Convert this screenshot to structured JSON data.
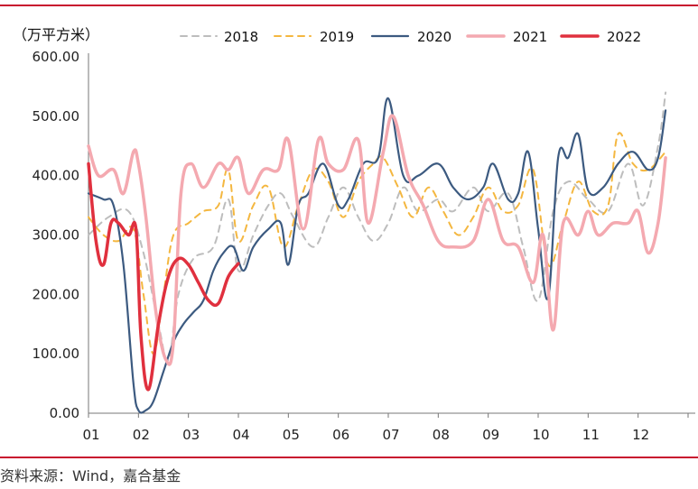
{
  "chart_data": {
    "type": "line",
    "unit_label": "（万平方米）",
    "ylim": [
      0,
      600
    ],
    "y_ticks": [
      "0.00",
      "100.00",
      "200.00",
      "300.00",
      "400.00",
      "500.00",
      "600.00"
    ],
    "x_ticks": [
      "01",
      "02",
      "03",
      "04",
      "05",
      "06",
      "07",
      "08",
      "09",
      "10",
      "11",
      "12"
    ],
    "x_range": [
      1,
      13
    ],
    "legend_position": "top",
    "series": [
      {
        "name": "2018",
        "color": "#bdbdbd",
        "style": "dashed",
        "x": [
          1.0,
          1.4,
          1.8,
          2.1,
          2.4,
          2.6,
          2.8,
          3.1,
          3.5,
          3.8,
          4.0,
          4.3,
          4.6,
          4.85,
          5.1,
          5.5,
          5.8,
          6.1,
          6.4,
          6.7,
          7.0,
          7.3,
          7.6,
          8.0,
          8.3,
          8.7,
          9.0,
          9.4,
          9.7,
          10.0,
          10.3,
          10.6,
          11.0,
          11.4,
          11.8,
          12.1,
          12.4,
          12.55
        ],
        "values": [
          300,
          330,
          340,
          270,
          150,
          90,
          200,
          260,
          280,
          360,
          240,
          300,
          350,
          370,
          330,
          280,
          330,
          380,
          330,
          290,
          320,
          380,
          340,
          360,
          340,
          380,
          340,
          370,
          280,
          190,
          340,
          390,
          360,
          340,
          420,
          350,
          450,
          540
        ]
      },
      {
        "name": "2019",
        "color": "#f4b740",
        "style": "dashed",
        "x": [
          1.0,
          1.3,
          1.6,
          1.9,
          2.1,
          2.3,
          2.5,
          2.7,
          3.0,
          3.3,
          3.6,
          3.8,
          4.0,
          4.3,
          4.6,
          4.9,
          5.2,
          5.5,
          5.8,
          6.1,
          6.4,
          6.7,
          6.9,
          7.2,
          7.5,
          7.8,
          8.1,
          8.4,
          8.7,
          9.0,
          9.3,
          9.6,
          9.9,
          10.2,
          10.5,
          10.8,
          11.1,
          11.4,
          11.6,
          11.9,
          12.2,
          12.55
        ],
        "values": [
          330,
          300,
          290,
          310,
          200,
          100,
          200,
          300,
          320,
          340,
          350,
          410,
          290,
          350,
          380,
          280,
          350,
          410,
          390,
          330,
          390,
          420,
          430,
          380,
          330,
          380,
          340,
          300,
          330,
          380,
          340,
          350,
          410,
          250,
          320,
          390,
          340,
          350,
          470,
          420,
          410,
          440
        ]
      },
      {
        "name": "2020",
        "color": "#3c5a80",
        "style": "solid",
        "x": [
          1.0,
          1.3,
          1.5,
          1.7,
          1.9,
          2.0,
          2.15,
          2.3,
          2.5,
          2.7,
          2.9,
          3.1,
          3.3,
          3.5,
          3.7,
          3.9,
          4.1,
          4.3,
          4.6,
          4.85,
          5.0,
          5.2,
          5.4,
          5.7,
          6.0,
          6.2,
          6.5,
          6.8,
          7.0,
          7.3,
          7.6,
          8.0,
          8.3,
          8.6,
          8.9,
          9.1,
          9.4,
          9.6,
          9.8,
          10.0,
          10.2,
          10.4,
          10.6,
          10.8,
          11.0,
          11.3,
          11.6,
          11.9,
          12.2,
          12.4,
          12.55
        ],
        "values": [
          370,
          360,
          350,
          250,
          50,
          5,
          5,
          20,
          70,
          120,
          150,
          170,
          190,
          240,
          270,
          280,
          240,
          280,
          310,
          320,
          250,
          350,
          370,
          420,
          350,
          360,
          420,
          430,
          530,
          400,
          400,
          420,
          380,
          360,
          380,
          420,
          360,
          370,
          440,
          310,
          195,
          430,
          430,
          470,
          375,
          380,
          420,
          440,
          410,
          430,
          510
        ]
      },
      {
        "name": "2021",
        "color": "#f4a9b0",
        "style": "solid",
        "x": [
          1.0,
          1.2,
          1.5,
          1.7,
          1.9,
          2.0,
          2.15,
          2.35,
          2.55,
          2.7,
          2.85,
          3.05,
          3.3,
          3.6,
          3.8,
          4.0,
          4.2,
          4.5,
          4.8,
          5.0,
          5.3,
          5.6,
          5.8,
          6.1,
          6.4,
          6.6,
          6.9,
          7.1,
          7.4,
          7.7,
          8.0,
          8.3,
          8.7,
          9.0,
          9.3,
          9.6,
          9.9,
          10.1,
          10.3,
          10.5,
          10.8,
          11.0,
          11.2,
          11.5,
          11.8,
          12.0,
          12.2,
          12.4,
          12.55
        ],
        "values": [
          450,
          400,
          410,
          370,
          440,
          420,
          330,
          170,
          90,
          120,
          370,
          420,
          380,
          420,
          410,
          430,
          370,
          410,
          410,
          460,
          310,
          460,
          420,
          410,
          460,
          320,
          440,
          500,
          400,
          350,
          290,
          280,
          290,
          360,
          290,
          280,
          220,
          300,
          140,
          320,
          300,
          340,
          300,
          320,
          320,
          340,
          270,
          320,
          430
        ]
      },
      {
        "name": "2022",
        "color": "#e0303e",
        "style": "solid",
        "x": [
          1.0,
          1.15,
          1.3,
          1.45,
          1.6,
          1.8,
          1.95,
          2.05,
          2.2,
          2.4,
          2.6,
          2.8,
          3.0,
          3.2,
          3.4,
          3.6,
          3.8,
          4.0
        ],
        "values": [
          420,
          290,
          250,
          320,
          320,
          300,
          310,
          130,
          40,
          150,
          230,
          260,
          250,
          220,
          190,
          185,
          230,
          252
        ]
      }
    ]
  },
  "source_text": "资料来源：Wind，嘉合基金"
}
